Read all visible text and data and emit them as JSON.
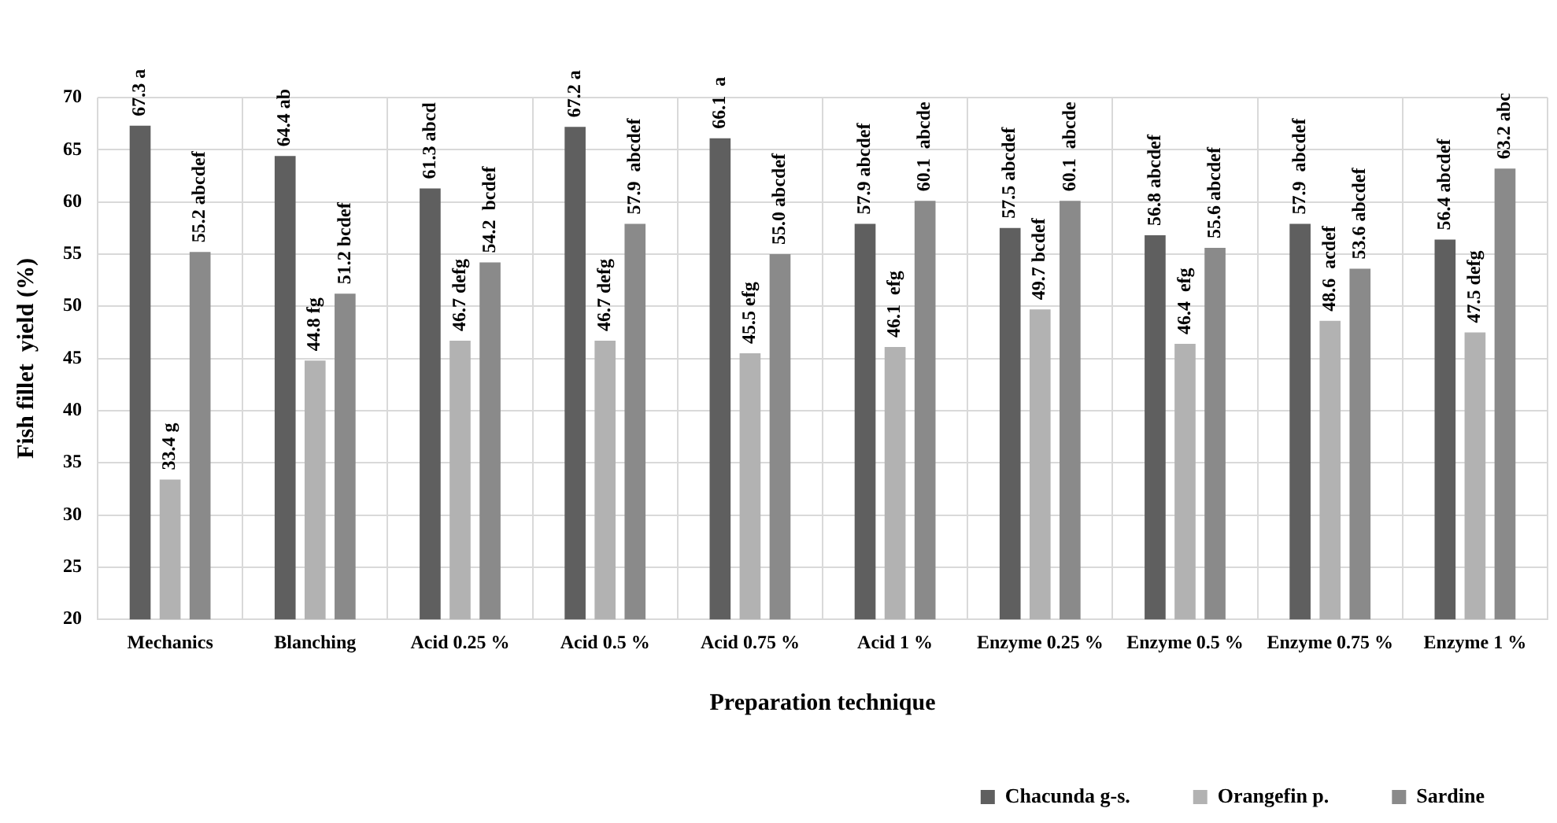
{
  "chart_data": {
    "type": "bar",
    "xlabel": "Preparation technique",
    "ylabel": "Fish fillet  yield (%)",
    "categories": [
      "Mechanics",
      "Blanching",
      "Acid 0.25 %",
      "Acid 0.5 %",
      "Acid 0.75 %",
      "Acid 1 %",
      "Enzyme 0.25 %",
      "Enzyme 0.5 %",
      "Enzyme 0.75 %",
      "Enzyme 1 %"
    ],
    "series": [
      {
        "name": "Chacunda g-s.",
        "color": "#5f5f5f",
        "values": [
          67.3,
          64.4,
          61.3,
          67.2,
          66.1,
          57.9,
          57.5,
          56.8,
          57.9,
          56.4
        ],
        "value_labels": [
          "67.3 a",
          "64.4 ab",
          "61.3 abcd",
          "67.2 a",
          "66.1  a",
          "57.9 abcdef",
          "57.5 abcdef",
          "56.8 abcdef",
          "57.9  abcdef",
          "56.4 abcdef"
        ]
      },
      {
        "name": "Orangefin p.",
        "color": "#b2b2b2",
        "values": [
          33.4,
          44.8,
          46.7,
          46.7,
          45.5,
          46.1,
          49.7,
          46.4,
          48.6,
          47.5
        ],
        "value_labels": [
          "33.4 g",
          "44.8 fg",
          "46.7 defg",
          "46.7 defg",
          "45.5 efg",
          "46.1  efg",
          "49.7 bcdef",
          "46.4  efg",
          "48.6  acdef",
          "47.5 defg"
        ]
      },
      {
        "name": "Sardine",
        "color": "#8a8a8a",
        "values": [
          55.2,
          51.2,
          54.2,
          57.9,
          55.0,
          60.1,
          60.1,
          55.6,
          53.6,
          63.2
        ],
        "value_labels": [
          "55.2 abcdef",
          "51.2 bcdef",
          "54.2  bcdef",
          "57.9  abcdef",
          "55.0 abcdef",
          "60.1  abcde",
          "60.1  abcde",
          "55.6 abcdef",
          "53.6 abcdef",
          "63.2 abc"
        ]
      }
    ],
    "ylim": [
      20,
      70
    ],
    "yticks": [
      20,
      25,
      30,
      35,
      40,
      45,
      50,
      55,
      60,
      65,
      70
    ],
    "grid": true,
    "legend": "bottom right"
  }
}
